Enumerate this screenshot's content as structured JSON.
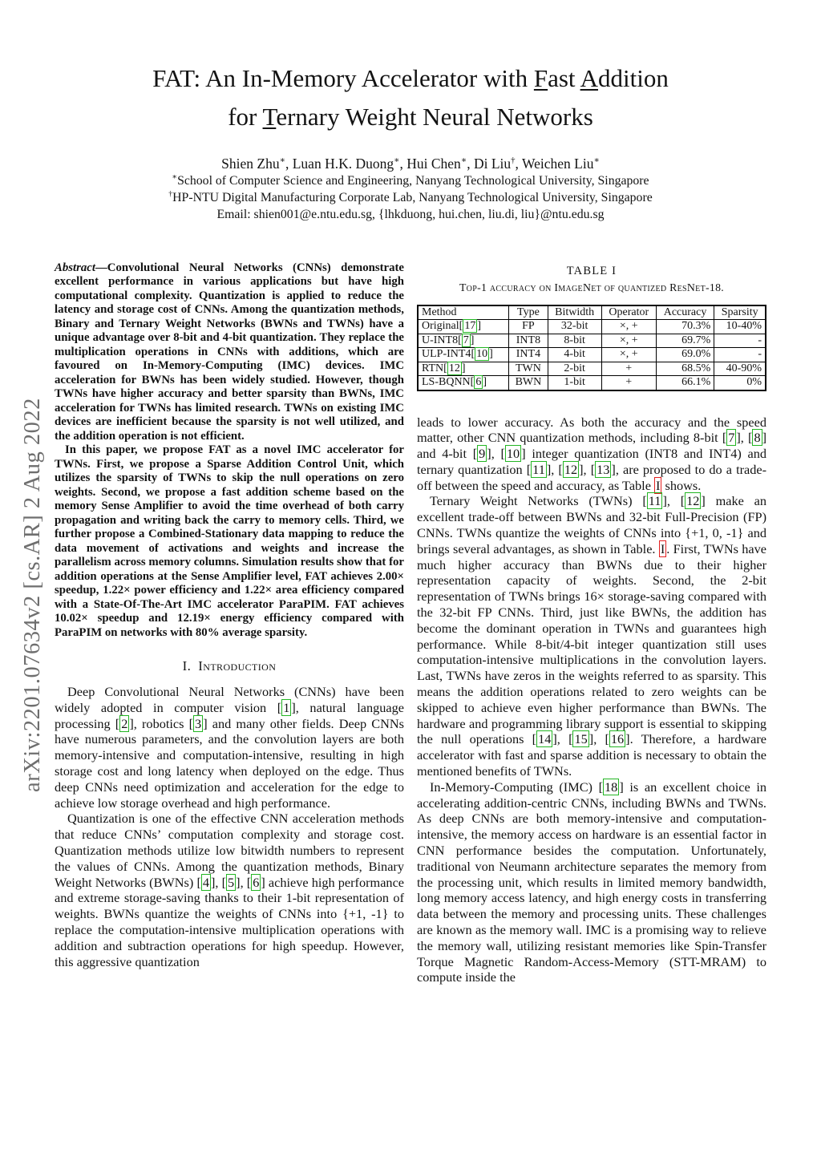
{
  "arxiv_banner": "arXiv:2201.07634v2  [cs.AR]  2 Aug 2022",
  "title": {
    "line1": [
      {
        "text": "FAT: An In-Memory Accelerator with "
      },
      {
        "text": "F",
        "style": "u"
      },
      {
        "text": "ast "
      },
      {
        "text": "A",
        "style": "u"
      },
      {
        "text": "ddition"
      }
    ],
    "line2": [
      {
        "text": "for "
      },
      {
        "text": "T",
        "style": "u"
      },
      {
        "text": "ernary Weight Neural Networks"
      }
    ]
  },
  "authors": {
    "names": [
      {
        "text": "Shien Zhu"
      },
      {
        "text": "∗",
        "style": "sup"
      },
      {
        "text": ", Luan H.K. Duong"
      },
      {
        "text": "∗",
        "style": "sup"
      },
      {
        "text": ", Hui Chen"
      },
      {
        "text": "∗",
        "style": "sup"
      },
      {
        "text": ", Di Liu"
      },
      {
        "text": "†",
        "style": "sup"
      },
      {
        "text": ", Weichen Liu"
      },
      {
        "text": "∗",
        "style": "sup"
      }
    ],
    "affil1": [
      {
        "text": "∗",
        "style": "sup"
      },
      {
        "text": "School of Computer Science and Engineering, Nanyang Technological University, Singapore"
      }
    ],
    "affil2": [
      {
        "text": "†",
        "style": "sup"
      },
      {
        "text": "HP-NTU Digital Manufacturing Corporate Lab, Nanyang Technological University, Singapore"
      }
    ],
    "email": "Email: shien001@e.ntu.edu.sg, {lhkduong, hui.chen, liu.di, liu}@ntu.edu.sg"
  },
  "abstract": {
    "p1": [
      {
        "text": "Abstract",
        "style": "ital"
      },
      {
        "text": "—Convolutional Neural Networks (CNNs) demonstrate excellent performance in various applications but have high computational complexity. Quantization is applied to reduce the latency and storage cost of CNNs. Among the quantization methods, Binary and Ternary Weight Networks (BWNs and TWNs) have a unique advantage over 8-bit and 4-bit quantization. They replace the multiplication operations in CNNs with additions, which are favoured on In-Memory-Computing (IMC) devices. IMC acceleration for BWNs has been widely studied. However, though TWNs have higher accuracy and better sparsity than BWNs, IMC acceleration for TWNs has limited research. TWNs on existing IMC devices are inefficient because the sparsity is not well utilized, and the addition operation is not efficient."
      }
    ],
    "p2": [
      {
        "text": "In this paper, we propose FAT as a novel IMC accelerator for TWNs. First, we propose a Sparse Addition Control Unit, which utilizes the sparsity of TWNs to skip the null operations on zero weights. Second, we propose a fast addition scheme based on the memory Sense Amplifier to avoid the time overhead of both carry propagation and writing back the carry to memory cells. Third, we further propose a Combined-Stationary data mapping to reduce the data movement of activations and weights and increase the parallelism across memory columns. Simulation results show that for addition operations at the Sense Amplifier level, FAT achieves 2.00× speedup, 1.22× power efficiency and 1.22× area efficiency compared with a State-Of-The-Art IMC accelerator ParaPIM. FAT achieves 10.02× speedup and 12.19× energy efficiency compared with ParaPIM on networks with 80% average sparsity."
      }
    ]
  },
  "section1": {
    "number": "I.",
    "title": "Introduction"
  },
  "intro": {
    "p1": [
      {
        "text": "Deep Convolutional Neural Networks (CNNs) have been widely adopted in computer vision "
      },
      {
        "text": "1",
        "style": "cite"
      },
      {
        "text": ", natural language processing "
      },
      {
        "text": "2",
        "style": "cite"
      },
      {
        "text": ", robotics "
      },
      {
        "text": "3",
        "style": "cite"
      },
      {
        "text": " and many other fields. Deep CNNs have numerous parameters, and the convolution layers are both memory-intensive and computation-intensive, resulting in high storage cost and long latency when deployed on the edge. Thus deep CNNs need optimization and acceleration for the edge to achieve low storage overhead and high performance."
      }
    ],
    "p2": [
      {
        "text": "Quantization is one of the effective CNN acceleration methods that reduce CNNs’ computation complexity and storage cost. Quantization methods utilize low bitwidth numbers to represent the values of CNNs. Among the quantization methods, Binary Weight Networks (BWNs) "
      },
      {
        "text": "4",
        "style": "cite"
      },
      {
        "text": ", "
      },
      {
        "text": "5",
        "style": "cite"
      },
      {
        "text": ", "
      },
      {
        "text": "6",
        "style": "cite"
      },
      {
        "text": " achieve high performance and extreme storage-saving thanks to their 1-bit representation of weights. BWNs quantize the weights of CNNs into {+1, -1} to replace the computation-intensive multiplication operations with addition and subtraction operations for high speedup. However, this aggressive quantization"
      }
    ]
  },
  "table1": {
    "label": "TABLE I",
    "caption": "Top-1 accuracy on ImageNet of quantized ResNet-18.",
    "headers": [
      "Method",
      "Type",
      "Bitwidth",
      "Operator",
      "Accuracy",
      "Sparsity"
    ],
    "rows": [
      {
        "method": [
          {
            "text": "Original"
          },
          {
            "text": "17",
            "style": "cite"
          }
        ],
        "type": "FP",
        "bitwidth": "32-bit",
        "operator": "×, +",
        "accuracy": "70.3%",
        "sparsity": "10-40%"
      },
      {
        "method": [
          {
            "text": "U-INT8"
          },
          {
            "text": "7",
            "style": "cite"
          }
        ],
        "type": "INT8",
        "bitwidth": "8-bit",
        "operator": "×, +",
        "accuracy": "69.7%",
        "sparsity": "-"
      },
      {
        "method": [
          {
            "text": "ULP-INT4"
          },
          {
            "text": "10",
            "style": "cite"
          }
        ],
        "type": "INT4",
        "bitwidth": "4-bit",
        "operator": "×, +",
        "accuracy": "69.0%",
        "sparsity": "-"
      },
      {
        "method": [
          {
            "text": "RTN"
          },
          {
            "text": "12",
            "style": "cite"
          }
        ],
        "type": "TWN",
        "bitwidth": "2-bit",
        "operator": "+",
        "accuracy": "68.5%",
        "sparsity": "40-90%"
      },
      {
        "method": [
          {
            "text": "LS-BQNN"
          },
          {
            "text": "6",
            "style": "cite"
          }
        ],
        "type": "BWN",
        "bitwidth": "1-bit",
        "operator": "+",
        "accuracy": "66.1%",
        "sparsity": "0%"
      }
    ]
  },
  "right_col": {
    "p1": [
      {
        "text": "leads to lower accuracy. As both the accuracy and the speed matter, other CNN quantization methods, including 8-bit "
      },
      {
        "text": "7",
        "style": "cite"
      },
      {
        "text": ", "
      },
      {
        "text": "8",
        "style": "cite"
      },
      {
        "text": " and 4-bit "
      },
      {
        "text": "9",
        "style": "cite"
      },
      {
        "text": ", "
      },
      {
        "text": "10",
        "style": "cite"
      },
      {
        "text": " integer quantization (INT8 and INT4) and ternary quantization "
      },
      {
        "text": "11",
        "style": "cite"
      },
      {
        "text": ", "
      },
      {
        "text": "12",
        "style": "cite"
      },
      {
        "text": ", "
      },
      {
        "text": "13",
        "style": "cite"
      },
      {
        "text": ", are proposed to do a trade-off between the speed and accuracy, as Table "
      },
      {
        "text": "I",
        "style": "tref"
      },
      {
        "text": " shows."
      }
    ],
    "p2": [
      {
        "text": "Ternary Weight Networks (TWNs) "
      },
      {
        "text": "11",
        "style": "cite"
      },
      {
        "text": ", "
      },
      {
        "text": "12",
        "style": "cite"
      },
      {
        "text": " make an excellent trade-off between BWNs and 32-bit Full-Precision (FP) CNNs. TWNs quantize the weights of CNNs into {+1, 0, -1} and brings several advantages, as shown in Table. "
      },
      {
        "text": "I",
        "style": "tref"
      },
      {
        "text": ". First, TWNs have much higher accuracy than BWNs due to their higher representation capacity of weights. Second, the 2-bit representation of TWNs brings 16× storage-saving compared with the 32-bit FP CNNs. Third, just like BWNs, the addition has become the dominant operation in TWNs and guarantees high performance. While 8-bit/4-bit integer quantization still uses computation-intensive multiplications in the convolution layers. Last, TWNs have zeros in the weights referred to as sparsity. This means the addition operations related to zero weights can be skipped to achieve even higher performance than BWNs. The hardware and programming library support is essential to skipping the null operations "
      },
      {
        "text": "14",
        "style": "cite"
      },
      {
        "text": ", "
      },
      {
        "text": "15",
        "style": "cite"
      },
      {
        "text": ", "
      },
      {
        "text": "16",
        "style": "cite"
      },
      {
        "text": ". Therefore, a hardware accelerator with fast and sparse addition is necessary to obtain the mentioned benefits of TWNs."
      }
    ],
    "p3": [
      {
        "text": "In-Memory-Computing (IMC) "
      },
      {
        "text": "18",
        "style": "cite"
      },
      {
        "text": " is an excellent choice in accelerating addition-centric CNNs, including BWNs and TWNs. As deep CNNs are both memory-intensive and computation-intensive, the memory access on hardware is an essential factor in CNN performance besides the computation. Unfortunately, traditional von Neumann architecture separates the memory from the processing unit, which results in limited memory bandwidth, long memory access latency, and high energy costs in transferring data between the memory and processing units. These challenges are known as the memory wall. IMC is a promising way to relieve the memory wall, utilizing resistant memories like Spin-Transfer Torque Magnetic Random-Access-Memory (STT-MRAM) to compute inside the"
      }
    ]
  },
  "colors": {
    "cite_green": "#23b523",
    "ref_red": "#e32020",
    "banner_gray": "#6e6e6e"
  }
}
